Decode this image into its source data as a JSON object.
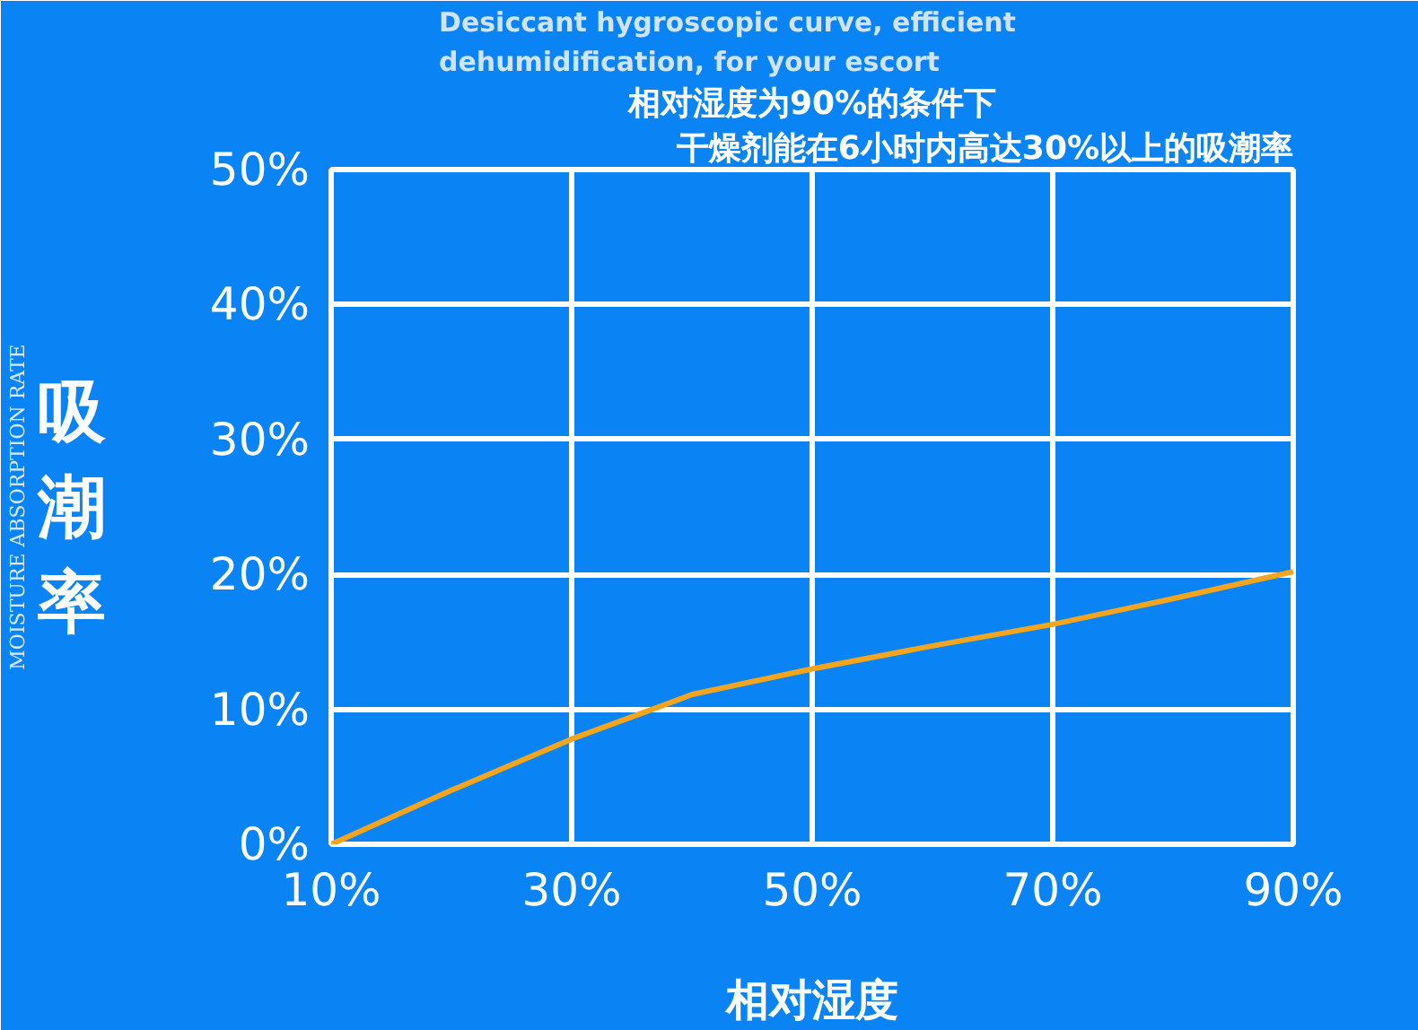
{
  "chart_data": {
    "type": "line",
    "ylabel": "吸潮率",
    "xlabel": "相对湿度",
    "annotations": [
      "Desiccant hygroscopic curve, efficient",
      "dehumidification, for your escort",
      "相对湿度为90%的条件下",
      "干燥剂能在6小时内高达30%以上的吸潮率",
      "MOISTURE ABSORPTION RATE"
    ],
    "x": [
      10,
      20,
      30,
      36.7,
      40,
      50,
      60,
      70,
      80,
      90
    ],
    "series": [
      {
        "color": "#f5a51c",
        "values": [
          0,
          4.0,
          7.8,
          10.0,
          11.1,
          13.0,
          14.7,
          16.3,
          18.2,
          20.2
        ]
      }
    ],
    "xlim": [
      10,
      90
    ],
    "ylim": [
      0,
      50
    ],
    "xticks": [
      {
        "value": 10,
        "label": "10%"
      },
      {
        "value": 30,
        "label": "30%"
      },
      {
        "value": 50,
        "label": "50%"
      },
      {
        "value": 70,
        "label": "70%"
      },
      {
        "value": 90,
        "label": "90%"
      }
    ],
    "yticks": [
      {
        "value": 0,
        "label": "0%"
      },
      {
        "value": 10,
        "label": "10%"
      },
      {
        "value": 20,
        "label": "20%"
      },
      {
        "value": 30,
        "label": "30%"
      },
      {
        "value": 40,
        "label": "40%"
      },
      {
        "value": 50,
        "label": "50%"
      }
    ],
    "grid": true,
    "line_style": "solid"
  }
}
